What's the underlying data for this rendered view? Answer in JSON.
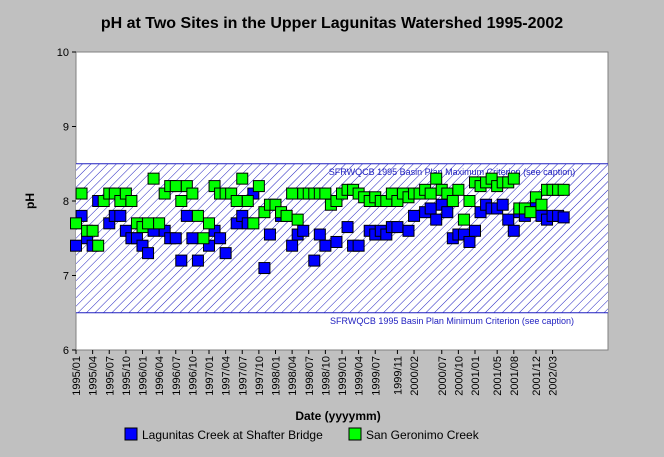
{
  "chart_data": {
    "type": "scatter",
    "title": "pH at Two Sites in the Upper Lagunitas Watershed 1995-2002",
    "xlabel": "Date (yyyymm)",
    "ylabel": "pH",
    "ylim": [
      6,
      10
    ],
    "yticks": [
      "6",
      "7",
      "8",
      "9",
      "10"
    ],
    "xlim": [
      "1995/01",
      "2003/01"
    ],
    "xticks": [
      "1995/01",
      "1995/04",
      "1995/07",
      "1995/10",
      "1996/01",
      "1996/04",
      "1996/07",
      "1996/10",
      "1997/01",
      "1997/04",
      "1997/07",
      "1997/10",
      "1998/01",
      "1998/04",
      "1998/07",
      "1998/10",
      "1999/01",
      "1999/04",
      "1999/07",
      "1999/11",
      "2000/02",
      "2000/07",
      "2000/10",
      "2001/01",
      "2001/05",
      "2001/08",
      "2001/12",
      "2002/03"
    ],
    "criteria": {
      "max_value": 8.5,
      "max_label": "SFRWQCB 1995 Basin Plan Maximum Criterion (see caption)",
      "min_value": 6.5,
      "min_label": "SFRWQCB 1995 Basin Plan Minimum Criterion (see caption)"
    },
    "series": [
      {
        "name": "Lagunitas Creek at Shafter Bridge",
        "color": "#0000ff",
        "x": [
          "1995/01",
          "1995/02",
          "1995/03",
          "1995/04",
          "1995/05",
          "1995/07",
          "1995/08",
          "1995/09",
          "1995/10",
          "1995/11",
          "1995/12",
          "1996/01",
          "1996/02",
          "1996/03",
          "1996/05",
          "1996/06",
          "1996/07",
          "1996/08",
          "1996/09",
          "1996/10",
          "1996/11",
          "1997/01",
          "1997/02",
          "1997/03",
          "1997/04",
          "1997/06",
          "1997/07",
          "1997/08",
          "1997/09",
          "1997/11",
          "1997/12",
          "1998/02",
          "1998/03",
          "1998/04",
          "1998/05",
          "1998/06",
          "1998/08",
          "1998/09",
          "1998/10",
          "1998/12",
          "1999/02",
          "1999/03",
          "1999/04",
          "1999/06",
          "1999/07",
          "1999/08",
          "1999/09",
          "1999/10",
          "1999/11",
          "2000/01",
          "2000/02",
          "2000/04",
          "2000/05",
          "2000/06",
          "2000/07",
          "2000/08",
          "2000/09",
          "2000/10",
          "2000/11",
          "2000/12",
          "2001/01",
          "2001/02",
          "2001/03",
          "2001/04",
          "2001/05",
          "2001/06",
          "2001/07",
          "2001/08",
          "2001/09",
          "2001/10",
          "2001/11",
          "2001/12",
          "2002/01",
          "2002/02",
          "2002/03",
          "2002/04",
          "2002/05"
        ],
        "values": [
          7.4,
          7.8,
          7.5,
          7.4,
          8.0,
          7.7,
          7.8,
          7.8,
          7.6,
          7.5,
          7.5,
          7.4,
          7.3,
          7.6,
          7.6,
          7.5,
          7.5,
          7.2,
          7.8,
          7.5,
          7.2,
          7.4,
          7.6,
          7.5,
          7.3,
          7.7,
          7.8,
          7.7,
          8.1,
          7.1,
          7.55,
          7.8,
          7.8,
          7.4,
          7.55,
          7.6,
          7.2,
          7.55,
          7.4,
          7.45,
          7.65,
          7.4,
          7.4,
          7.6,
          7.55,
          7.6,
          7.55,
          7.65,
          7.65,
          7.6,
          7.8,
          7.85,
          7.9,
          7.75,
          7.95,
          7.85,
          7.5,
          7.55,
          7.55,
          7.45,
          7.6,
          7.85,
          7.95,
          7.9,
          7.9,
          7.95,
          7.75,
          7.6,
          7.85,
          7.8,
          7.9,
          8.0,
          7.8,
          7.75,
          7.8,
          7.8,
          7.78
        ]
      },
      {
        "name": "San Geronimo Creek",
        "color": "#00ff00",
        "x": [
          "1995/01",
          "1995/02",
          "1995/03",
          "1995/04",
          "1995/05",
          "1995/06",
          "1995/07",
          "1995/08",
          "1995/09",
          "1995/10",
          "1995/11",
          "1995/12",
          "1996/01",
          "1996/02",
          "1996/03",
          "1996/04",
          "1996/05",
          "1996/06",
          "1996/07",
          "1996/08",
          "1996/09",
          "1996/10",
          "1996/11",
          "1996/12",
          "1997/01",
          "1997/02",
          "1997/03",
          "1997/04",
          "1997/05",
          "1997/06",
          "1997/07",
          "1997/08",
          "1997/09",
          "1997/10",
          "1997/11",
          "1997/12",
          "1998/01",
          "1998/02",
          "1998/03",
          "1998/04",
          "1998/05",
          "1998/06",
          "1998/07",
          "1998/08",
          "1998/09",
          "1998/10",
          "1998/11",
          "1998/12",
          "1999/01",
          "1999/02",
          "1999/03",
          "1999/04",
          "1999/05",
          "1999/06",
          "1999/07",
          "1999/08",
          "1999/09",
          "1999/10",
          "1999/11",
          "1999/12",
          "2000/01",
          "2000/02",
          "2000/03",
          "2000/04",
          "2000/05",
          "2000/06",
          "2000/07",
          "2000/08",
          "2000/09",
          "2000/10",
          "2000/11",
          "2000/12",
          "2001/01",
          "2001/02",
          "2001/03",
          "2001/04",
          "2001/05",
          "2001/06",
          "2001/07",
          "2001/08",
          "2001/09",
          "2001/10",
          "2001/11",
          "2001/12",
          "2002/01",
          "2002/02",
          "2002/03",
          "2002/04",
          "2002/05"
        ],
        "values": [
          7.7,
          8.1,
          7.6,
          7.6,
          7.4,
          8.0,
          8.1,
          8.1,
          8.0,
          8.1,
          8.0,
          7.7,
          7.65,
          7.7,
          8.3,
          7.7,
          8.1,
          8.2,
          8.2,
          8.0,
          8.2,
          8.1,
          7.8,
          7.5,
          7.7,
          8.2,
          8.1,
          8.1,
          8.1,
          8.0,
          8.3,
          8.0,
          7.7,
          8.2,
          7.85,
          7.95,
          7.95,
          7.85,
          7.8,
          8.1,
          7.75,
          8.1,
          8.1,
          8.1,
          8.1,
          8.1,
          7.95,
          8.0,
          8.1,
          8.15,
          8.15,
          8.1,
          8.05,
          8.0,
          8.05,
          8.0,
          8.0,
          8.1,
          8.0,
          8.1,
          8.05,
          8.1,
          8.1,
          8.15,
          8.1,
          8.3,
          8.15,
          8.1,
          8.0,
          8.15,
          7.75,
          8.0,
          8.25,
          8.2,
          8.25,
          8.3,
          8.2,
          8.25,
          8.25,
          8.3,
          7.9,
          7.9,
          7.85,
          8.05,
          7.95,
          8.15,
          8.15,
          8.15,
          8.15
        ]
      }
    ],
    "legend": "bottom"
  }
}
